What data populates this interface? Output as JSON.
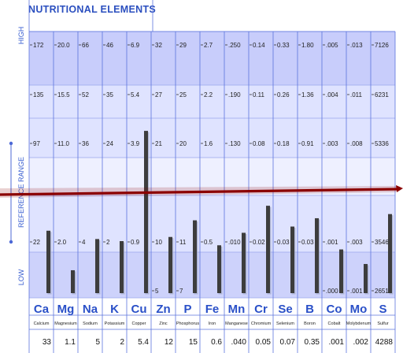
{
  "chart_data": {
    "type": "bar",
    "title": "NUTRITIONAL ELEMENTS",
    "side_labels": {
      "high": "HIGH",
      "range": "REFERENCE RANGE",
      "low": "LOW"
    },
    "colors": {
      "accent": "#2a50c8",
      "bar": "#3d3d3d",
      "reference_line": "#8b0000",
      "panel": "#dde2ff"
    },
    "columns": [
      {
        "symbol": "Ca",
        "name": "Calcium",
        "value": "33",
        "ticks": [
          "172",
          "135",
          "97",
          "22"
        ],
        "bar_level": 0.3
      },
      {
        "symbol": "Mg",
        "name": "Magnesium",
        "value": "1.1",
        "ticks": [
          "20.0",
          "15.5",
          "11.0",
          "2.0"
        ],
        "bar_level": 0.11
      },
      {
        "symbol": "Na",
        "name": "Sodium",
        "value": "5",
        "ticks": [
          "66",
          "52",
          "36",
          "4"
        ],
        "bar_level": 0.26
      },
      {
        "symbol": "K",
        "name": "Potassium",
        "value": "2",
        "ticks": [
          "46",
          "35",
          "24",
          "2"
        ],
        "bar_level": 0.25
      },
      {
        "symbol": "Cu",
        "name": "Copper",
        "value": "5.4",
        "ticks": [
          "6.9",
          "5.4",
          "3.9",
          "0.9"
        ],
        "bar_level": 0.78
      },
      {
        "symbol": "Zn",
        "name": "Zinc",
        "value": "12",
        "ticks": [
          "32",
          "27",
          "21",
          "10",
          "5"
        ],
        "bar_level": 0.27
      },
      {
        "symbol": "P",
        "name": "Phosphorus",
        "value": "15",
        "ticks": [
          "29",
          "25",
          "20",
          "11",
          "7"
        ],
        "bar_level": 0.35
      },
      {
        "symbol": "Fe",
        "name": "Iron",
        "value": "0.6",
        "ticks": [
          "2.7",
          "2.2",
          "1.6",
          "0.5"
        ],
        "bar_level": 0.23
      },
      {
        "symbol": "Mn",
        "name": "Manganese",
        "value": ".040",
        "ticks": [
          ".250",
          ".190",
          ".130",
          ".010"
        ],
        "bar_level": 0.29
      },
      {
        "symbol": "Cr",
        "name": "Chromium",
        "value": "0.05",
        "ticks": [
          "0.14",
          "0.11",
          "0.08",
          "0.02"
        ],
        "bar_level": 0.42
      },
      {
        "symbol": "Se",
        "name": "Selenium",
        "value": "0.07",
        "ticks": [
          "0.33",
          "0.26",
          "0.18",
          "0.03"
        ],
        "bar_level": 0.32
      },
      {
        "symbol": "B",
        "name": "Boron",
        "value": "0.35",
        "ticks": [
          "1.80",
          "1.36",
          "0.91",
          "0.03"
        ],
        "bar_level": 0.36
      },
      {
        "symbol": "Co",
        "name": "Cobalt",
        "value": ".001",
        "ticks": [
          ".005",
          ".004",
          ".003",
          ".001",
          ".000"
        ],
        "bar_level": 0.21
      },
      {
        "symbol": "Mo",
        "name": "Molybdenum",
        "value": ".002",
        "ticks": [
          ".013",
          ".011",
          ".008",
          ".003",
          ".001"
        ],
        "bar_level": 0.14
      },
      {
        "symbol": "S",
        "name": "Sulfur",
        "value": "4288",
        "ticks": [
          "7126",
          "6231",
          "5336",
          "3546",
          "2651"
        ],
        "bar_level": 0.38
      }
    ]
  }
}
